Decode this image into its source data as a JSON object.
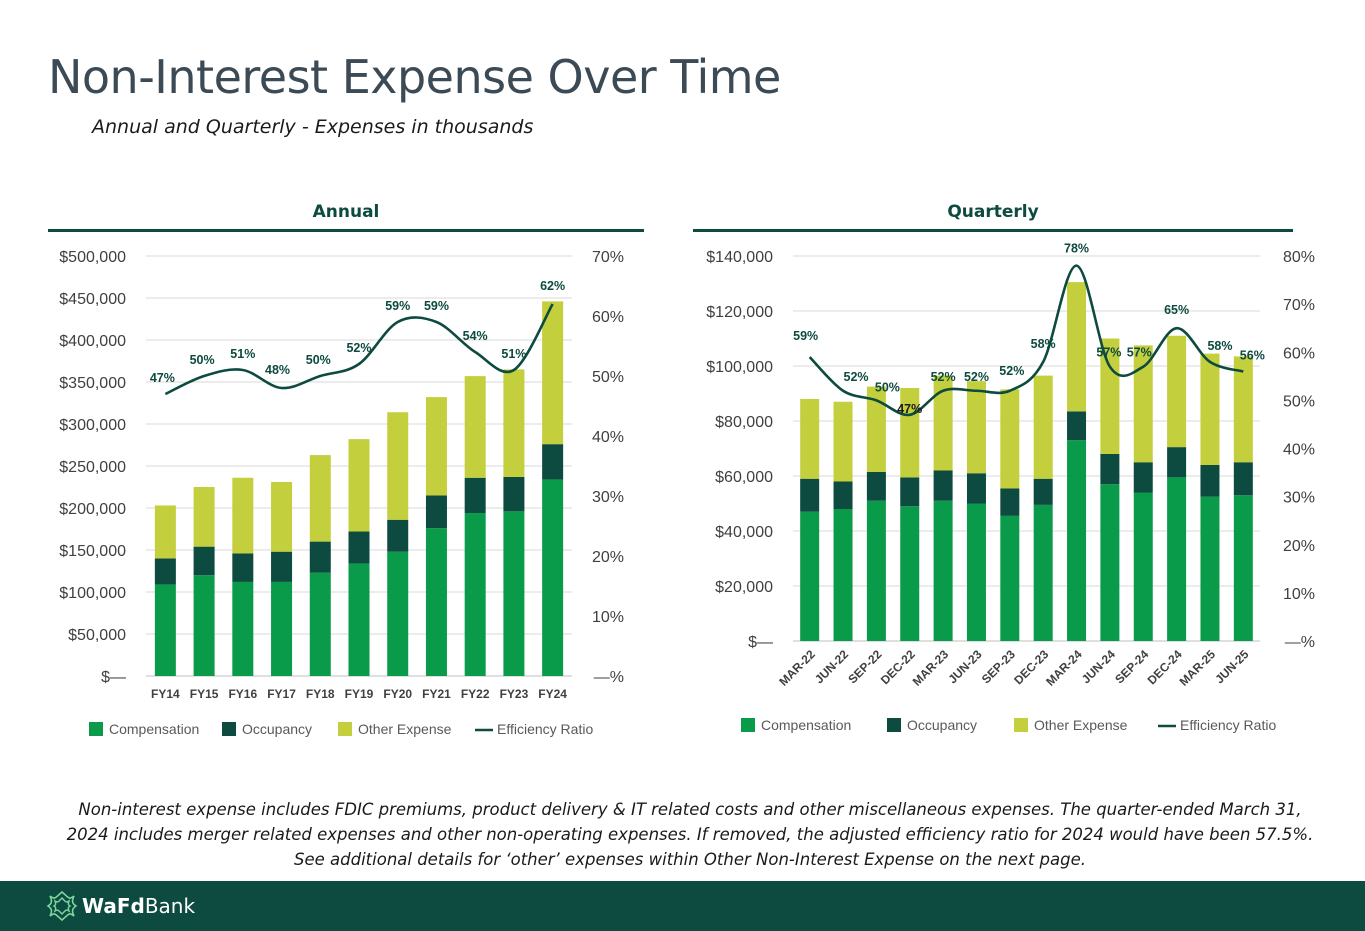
{
  "title": "Non-Interest Expense Over Time",
  "subtitle": "Annual and Quarterly - Expenses in thousands",
  "footnote": "Non-interest expense includes FDIC premiums, product delivery & IT related costs and other miscellaneous expenses.  The quarter-ended March 31, 2024 includes merger related expenses and other non-operating expenses.  If removed, the adjusted efficiency ratio for 2024 would have been 57.5%.  See additional details for ‘other’ expenses within Other Non-Interest Expense on the next page.",
  "footer": {
    "brand_bold": "WaFd",
    "brand_regular": "Bank",
    "logo_icon": "wafd-logo-icon",
    "background": "#0d4a3f"
  },
  "colors": {
    "compensation": "#0a9b4a",
    "occupancy": "#0d4a3f",
    "other_expense": "#c3cf3c",
    "efficiency_ratio": "#0d4a3f",
    "accent": "#0d4a3f"
  },
  "chart_data": [
    {
      "panel_title": "Annual",
      "type": "bar",
      "stacked": true,
      "categories": [
        "FY14",
        "FY15",
        "FY16",
        "FY17",
        "FY18",
        "FY19",
        "FY20",
        "FY21",
        "FY22",
        "FY23",
        "FY24"
      ],
      "series": [
        {
          "name": "Compensation",
          "values": [
            109000,
            120000,
            112000,
            112000,
            123000,
            134000,
            148000,
            176000,
            194000,
            196000,
            234000
          ]
        },
        {
          "name": "Occupancy",
          "values": [
            31000,
            34000,
            34000,
            36000,
            37000,
            38000,
            38000,
            39000,
            42000,
            41000,
            42000
          ]
        },
        {
          "name": "Other Expense",
          "values": [
            63000,
            71000,
            90000,
            83000,
            103000,
            110000,
            128000,
            117000,
            121000,
            128000,
            170000
          ]
        }
      ],
      "line_series": {
        "name": "Efficiency Ratio",
        "values": [
          47,
          50,
          51,
          48,
          50,
          52,
          59,
          59,
          54,
          51,
          62
        ],
        "labels": [
          "47%",
          "50%",
          "51%",
          "48%",
          "50%",
          "52%",
          "59%",
          "59%",
          "54%",
          "51%",
          "62%"
        ]
      },
      "y_ticks": [
        "$—",
        "$50,000",
        "$100,000",
        "$150,000",
        "$200,000",
        "$250,000",
        "$300,000",
        "$350,000",
        "$400,000",
        "$450,000",
        "$500,000"
      ],
      "y2_ticks": [
        "—%",
        "10%",
        "20%",
        "30%",
        "40%",
        "50%",
        "60%",
        "70%"
      ],
      "ylim": [
        0,
        500000
      ],
      "y2lim": [
        0,
        70
      ],
      "grid": true,
      "legend_position": "bottom",
      "legend": [
        "Compensation",
        "Occupancy",
        "Other Expense",
        "Efficiency Ratio"
      ]
    },
    {
      "panel_title": "Quarterly",
      "type": "bar",
      "stacked": true,
      "categories": [
        "MAR-22",
        "JUN-22",
        "SEP-22",
        "DEC-22",
        "MAR-23",
        "JUN-23",
        "SEP-23",
        "DEC-23",
        "MAR-24",
        "JUN-24",
        "SEP-24",
        "DEC-24",
        "MAR-25",
        "JUN-25"
      ],
      "series": [
        {
          "name": "Compensation",
          "values": [
            47000,
            48000,
            51000,
            49000,
            51000,
            50000,
            45500,
            49500,
            73000,
            57000,
            54000,
            59500,
            52500,
            53000
          ]
        },
        {
          "name": "Occupancy",
          "values": [
            12000,
            10000,
            10500,
            10500,
            11000,
            11000,
            10000,
            9500,
            10500,
            11000,
            11000,
            11000,
            11500,
            12000
          ]
        },
        {
          "name": "Other Expense",
          "values": [
            29000,
            29000,
            31000,
            32500,
            34500,
            33500,
            36000,
            37500,
            47000,
            42000,
            42500,
            40500,
            40500,
            38500
          ]
        }
      ],
      "line_series": {
        "name": "Efficiency Ratio",
        "values": [
          59,
          52,
          50,
          47,
          52,
          52,
          52,
          58,
          78,
          57,
          57,
          65,
          58,
          56
        ],
        "labels": [
          "59%",
          "52%",
          "50%",
          "47%",
          "52%",
          "52%",
          "52%",
          "58%",
          "78%",
          "57%",
          "57%",
          "65%",
          "58%",
          "56%"
        ]
      },
      "y_ticks": [
        "$—",
        "$20,000",
        "$40,000",
        "$60,000",
        "$80,000",
        "$100,000",
        "$120,000",
        "$140,000"
      ],
      "y2_ticks": [
        "—%",
        "10%",
        "20%",
        "30%",
        "40%",
        "50%",
        "60%",
        "70%",
        "80%"
      ],
      "ylim": [
        0,
        140000
      ],
      "y2lim": [
        0,
        80
      ],
      "grid": true,
      "legend_position": "bottom",
      "legend": [
        "Compensation",
        "Occupancy",
        "Other Expense",
        "Efficiency Ratio"
      ]
    }
  ]
}
